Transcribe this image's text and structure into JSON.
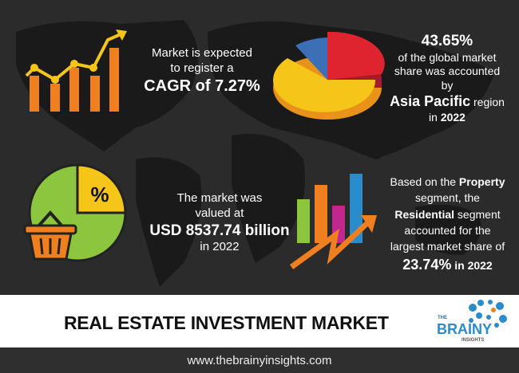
{
  "colors": {
    "background": "#2b2b2b",
    "orange": "#f07f1f",
    "yellow": "#f5c518",
    "green": "#8cc63f",
    "red": "#e0242f",
    "blue": "#3b6fb6",
    "logo_blue": "#2a8ccc"
  },
  "stat_cagr": {
    "line1": "Market is expected",
    "line2": "to register a",
    "highlight": "CAGR of 7.27%"
  },
  "stat_region": {
    "percent": "43.65%",
    "line1": "of the global market",
    "line2": "share was accounted by",
    "region": "Asia Pacific",
    "region_suffix": " region",
    "year_prefix": "in ",
    "year": "2022"
  },
  "stat_size": {
    "line1": "The market was",
    "line2": "valued at",
    "value": "USD 8537.74 billion",
    "line3": "in 2022"
  },
  "stat_segment": {
    "prefix1": "Based on the ",
    "segment": "Property",
    "line2": "segment, the",
    "sub": "Residential",
    "sub_suffix": " segment",
    "line3": "accounted for the",
    "line4": "largest market share of",
    "share": "23.74%",
    "share_suffix": " in 2022"
  },
  "pie_icon_symbol": "%",
  "banner": {
    "title": "REAL ESTATE INVESTMENT MARKET"
  },
  "logo": {
    "the": "THE",
    "brainy": "BRAINY",
    "insights": "INSIGHTS"
  },
  "footer": {
    "url": "www.thebrainyinsights.com"
  }
}
